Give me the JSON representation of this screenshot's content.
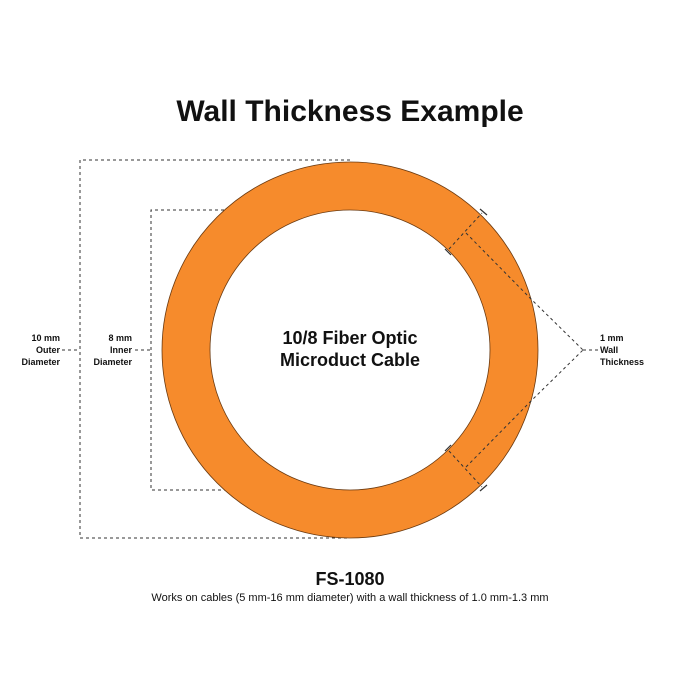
{
  "title": "Wall Thickness Example",
  "center_label": [
    "10/8 Fiber Optic",
    "Microduct Cable"
  ],
  "outer_label": [
    "10 mm",
    "Outer",
    "Diameter"
  ],
  "inner_label": [
    "8 mm",
    "Inner",
    "Diameter"
  ],
  "wall_label": [
    "1 mm",
    "Wall",
    "Thickness"
  ],
  "model": "FS-1080",
  "description": "Works on cables (5 mm-16 mm diameter) with a wall thickness of 1.0 mm-1.3 mm",
  "colors": {
    "ring": "#f68b2c",
    "outline": "#6b3a10",
    "dash": "#333333"
  }
}
